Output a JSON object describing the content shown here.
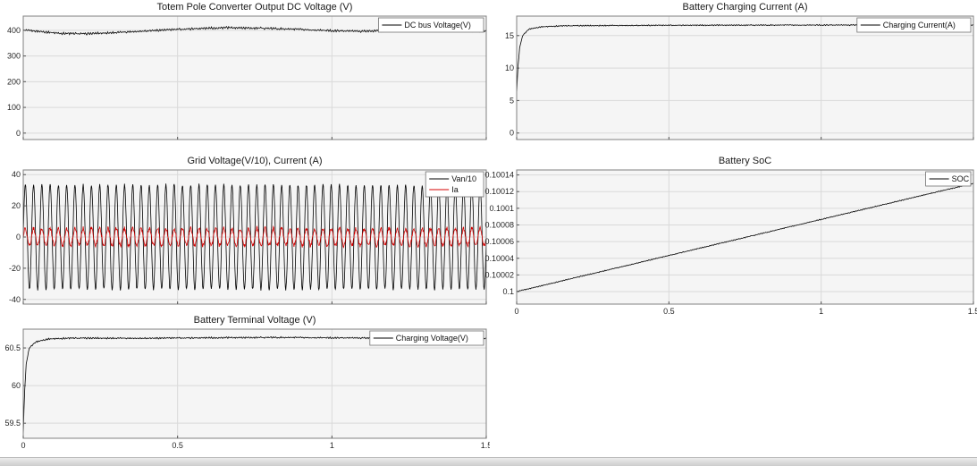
{
  "colors": {
    "plot_background": "#f5f5f5",
    "grid_line": "#d9d9d9",
    "axes_border": "#808080",
    "tick_mark": "#555555",
    "tick_label": "#262626",
    "legend_border": "#707070",
    "series_black": "#000000",
    "series_red": "#d40000"
  },
  "chart_data": [
    {
      "type": "line",
      "title": "Totem Pole Converter Output DC Voltage (V)",
      "xlabel": "",
      "ylabel": "",
      "xlim": [
        0,
        1.5
      ],
      "ylim": [
        -25,
        455
      ],
      "xticks": [
        0,
        0.5,
        1,
        1.5
      ],
      "xtick_labels": [],
      "yticks": [
        0,
        100,
        200,
        300,
        400
      ],
      "ytick_labels": [
        "0",
        "100",
        "200",
        "300",
        "400"
      ],
      "grid": true,
      "legend_position": "top-right",
      "series": [
        {
          "name": "DC bus Voltage(V)",
          "color": "#000000",
          "kind": "points",
          "noise": 5,
          "x": [
            0,
            0.05,
            0.12,
            0.2,
            0.3,
            0.42,
            0.55,
            0.65,
            0.78,
            0.9,
            1.0,
            1.1,
            1.2,
            1.3,
            1.4,
            1.5
          ],
          "y": [
            400,
            396,
            388,
            386,
            391,
            399,
            406,
            410,
            408,
            403,
            398,
            396,
            400,
            404,
            402,
            398
          ]
        }
      ]
    },
    {
      "type": "line",
      "title": "Battery Charging Current (A)",
      "xlabel": "",
      "ylabel": "",
      "xlim": [
        0,
        1.5
      ],
      "ylim": [
        -1,
        18
      ],
      "xticks": [
        0,
        0.5,
        1,
        1.5
      ],
      "xtick_labels": [],
      "yticks": [
        0,
        5,
        10,
        15
      ],
      "ytick_labels": [
        "0",
        "5",
        "10",
        "15"
      ],
      "grid": true,
      "legend_position": "top-right",
      "series": [
        {
          "name": "Charging Current(A)",
          "color": "#000000",
          "kind": "points",
          "noise": 0.1,
          "x": [
            0,
            0.004,
            0.01,
            0.02,
            0.04,
            0.08,
            0.15,
            0.3,
            0.6,
            1.0,
            1.5
          ],
          "y": [
            6,
            10,
            13.2,
            15,
            16,
            16.35,
            16.5,
            16.55,
            16.6,
            16.62,
            16.65
          ]
        }
      ]
    },
    {
      "type": "line",
      "title": "Grid Voltage(V/10), Current (A)",
      "xlabel": "",
      "ylabel": "",
      "xlim": [
        0,
        1.5
      ],
      "ylim": [
        -43,
        43
      ],
      "xticks": [
        0,
        0.5,
        1,
        1.5
      ],
      "xtick_labels": [],
      "yticks": [
        -40,
        -20,
        0,
        20,
        40
      ],
      "ytick_labels": [
        "-40",
        "-20",
        "0",
        "20",
        "40"
      ],
      "grid": true,
      "legend_position": "top-right",
      "series": [
        {
          "name": "Van/10",
          "color": "#000000",
          "kind": "sine",
          "amplitude": 33.5,
          "cycles": 56,
          "phase": 0,
          "noise": 0.8
        },
        {
          "name": "Ia",
          "color": "#d40000",
          "kind": "sine",
          "amplitude": 5.5,
          "cycles": 56,
          "phase": 0,
          "noise": 1.3
        }
      ]
    },
    {
      "type": "line",
      "title": "Battery SoC",
      "xlabel": "",
      "ylabel": "",
      "xlim": [
        0,
        1.5
      ],
      "ylim": [
        0.099985,
        0.100146
      ],
      "xticks": [
        0,
        0.5,
        1,
        1.5
      ],
      "xtick_labels": [
        "0",
        "0.5",
        "1",
        "1.5"
      ],
      "yticks": [
        0.1,
        0.10002,
        0.10004,
        0.10006,
        0.10008,
        0.1001,
        0.10012,
        0.10014
      ],
      "ytick_labels": [
        "0.1",
        "0.10002",
        "0.10004",
        "0.10006",
        "0.10008",
        "0.1001",
        "0.10012",
        "0.10014"
      ],
      "grid": true,
      "legend_position": "top-right",
      "series": [
        {
          "name": "SOC",
          "color": "#000000",
          "kind": "points",
          "noise": 6e-07,
          "x": [
            0,
            1.5
          ],
          "y": [
            0.1,
            0.10013
          ]
        }
      ]
    },
    {
      "type": "line",
      "title": "Battery Terminal Voltage (V)",
      "xlabel": "",
      "ylabel": "",
      "xlim": [
        0,
        1.5
      ],
      "ylim": [
        59.3,
        60.75
      ],
      "xticks": [
        0,
        0.5,
        1,
        1.5
      ],
      "xtick_labels": [
        "0",
        "0.5",
        "1",
        "1.5"
      ],
      "yticks": [
        59.5,
        60,
        60.5
      ],
      "ytick_labels": [
        "59.5",
        "60",
        "60.5"
      ],
      "grid": true,
      "legend_position": "top-right",
      "series": [
        {
          "name": "Charging Voltage(V)",
          "color": "#000000",
          "kind": "points",
          "noise": 0.012,
          "x": [
            0,
            0.004,
            0.01,
            0.02,
            0.04,
            0.08,
            0.15,
            0.4,
            0.8,
            1.2,
            1.5
          ],
          "y": [
            59.32,
            59.9,
            60.3,
            60.5,
            60.58,
            60.62,
            60.63,
            60.63,
            60.64,
            60.63,
            60.63
          ]
        }
      ]
    }
  ]
}
